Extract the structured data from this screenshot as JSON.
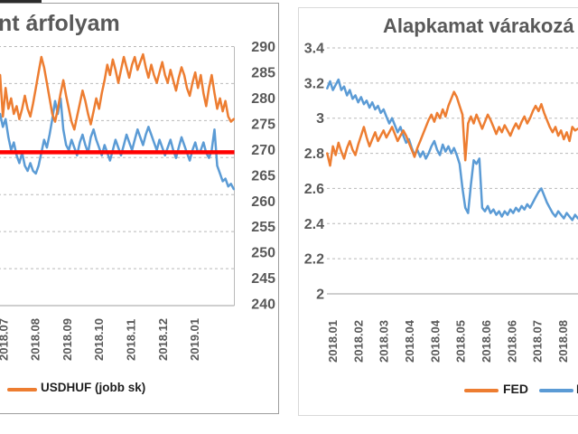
{
  "page": {
    "background": "#ffffff",
    "top_left_fragment_color": "#2b2b2b",
    "panel_border_left": "#9d9d9d",
    "panel_border_right": "#d9d9d9"
  },
  "chart_data": [
    {
      "type": "line",
      "panel": "left",
      "title": "nt árfolyam",
      "ylim_right": [
        240,
        290
      ],
      "y_tick_labels_right": [
        "290",
        "285",
        "280",
        "275",
        "270",
        "265",
        "260",
        "255",
        "250",
        "245",
        "240"
      ],
      "x_tick_labels": [
        "2018.07",
        "2018.08",
        "2018.09",
        "2018.10",
        "2018.11",
        "2018.12",
        "2019.01"
      ],
      "grid": "horizontal dashed, 8 lines (primary axis cut off at left)",
      "legend_position": "bottom",
      "reference_line": {
        "value": 269.6,
        "color": "#ff0000"
      },
      "legend": [
        {
          "label": "USDHUF (jobb sk)",
          "color": "#ed7d31"
        }
      ],
      "series": [
        {
          "name": "",
          "axis": "left (scale cut off, plotted vs right scale)",
          "color": "#5b9bd5",
          "x_unit": "months after 2018.07 tick",
          "x_start": -0.09,
          "x_step": 0.0862,
          "values": [
            277,
            274.5,
            276,
            272.5,
            270,
            271.5,
            269,
            267.5,
            269.5,
            267,
            266,
            267.5,
            266,
            265.5,
            267,
            269.5,
            272,
            270.5,
            273,
            276,
            279.5,
            277,
            280,
            274,
            271,
            270,
            272,
            270.5,
            269,
            271.5,
            273,
            271,
            269.5,
            272.5,
            274,
            272,
            270.5,
            269,
            271,
            269.5,
            268,
            270,
            272,
            270.5,
            269,
            271,
            273,
            271.5,
            270,
            272,
            274,
            272.5,
            271,
            273,
            274.5,
            273,
            271.5,
            270,
            272,
            270.5,
            269,
            270.5,
            272,
            270,
            268.5,
            270.5,
            272.5,
            271,
            269.5,
            268,
            270,
            271.5,
            269.5,
            270,
            271.5,
            269.5,
            268.5,
            270,
            274,
            267,
            265.5,
            264,
            264.5,
            263,
            263.5,
            262.5
          ]
        },
        {
          "name": "USDHUF (jobb sk)",
          "axis": "right",
          "color": "#ed7d31",
          "x_unit": "months after 2018.07 tick",
          "x_start": -0.09,
          "x_step": 0.0862,
          "values": [
            284.5,
            276.5,
            282,
            278,
            280,
            277,
            278.5,
            276,
            278,
            280.5,
            278,
            276.5,
            279,
            282,
            285,
            288,
            286,
            283,
            280,
            277,
            275.5,
            278,
            281,
            283.5,
            280.5,
            278,
            275.5,
            274,
            276.5,
            279,
            281.5,
            279.5,
            277,
            275,
            277.5,
            280,
            278,
            281,
            283.5,
            286.5,
            284.5,
            287.5,
            285.5,
            283,
            285.5,
            288,
            286,
            284,
            286.5,
            288,
            285.5,
            287,
            288.5,
            286,
            284,
            286.5,
            284.5,
            283,
            285,
            287,
            284.5,
            283,
            285.5,
            283.5,
            281.5,
            284,
            286,
            284.5,
            282,
            280.5,
            283,
            285,
            282,
            284.5,
            281,
            278.5,
            282,
            284.5,
            281,
            278,
            280,
            277.5,
            279.5,
            276.5,
            275.5,
            276
          ]
        }
      ]
    },
    {
      "type": "line",
      "panel": "right",
      "title": "Alapkamat várakozá",
      "ylim": [
        2,
        3.4
      ],
      "y_tick_labels": [
        "3.4",
        "3.2",
        "3",
        "2.8",
        "2.6",
        "2.4",
        "2.2",
        "2"
      ],
      "x_tick_labels": [
        "2018.01",
        "2018.02",
        "2018.03",
        "2018.04",
        "2018.04",
        "2018.05",
        "2018.06",
        "2018.06",
        "2018.07",
        "2018.08"
      ],
      "grid": "horizontal dashed",
      "legend_position": "bottom",
      "legend": [
        {
          "label": "FED",
          "color": "#ed7d31"
        },
        {
          "label": "E",
          "color": "#5b9bd5"
        }
      ],
      "series": [
        {
          "name": "E",
          "axis": "left",
          "color": "#5b9bd5",
          "x_unit": "x-tick index (2018.01 = 0)",
          "x_start": -0.2,
          "x_step": 0.1101,
          "values": [
            3.17,
            3.21,
            3.16,
            3.19,
            3.22,
            3.16,
            3.18,
            3.13,
            3.16,
            3.11,
            3.13,
            3.09,
            3.12,
            3.08,
            3.1,
            3.06,
            3.09,
            3.05,
            3.07,
            3.03,
            3.05,
            3.01,
            2.97,
            3.0,
            2.96,
            2.92,
            2.95,
            2.9,
            2.86,
            2.88,
            2.83,
            2.79,
            2.82,
            2.78,
            2.81,
            2.77,
            2.8,
            2.84,
            2.87,
            2.82,
            2.79,
            2.85,
            2.81,
            2.84,
            2.8,
            2.83,
            2.79,
            2.74,
            2.6,
            2.49,
            2.46,
            2.62,
            2.76,
            2.74,
            2.77,
            2.49,
            2.47,
            2.5,
            2.46,
            2.48,
            2.45,
            2.47,
            2.44,
            2.47,
            2.45,
            2.48,
            2.46,
            2.49,
            2.47,
            2.5,
            2.48,
            2.51,
            2.49,
            2.52,
            2.55,
            2.58,
            2.6,
            2.56,
            2.52,
            2.49,
            2.46,
            2.44,
            2.47,
            2.45,
            2.43,
            2.46,
            2.44,
            2.42,
            2.45,
            2.43
          ]
        },
        {
          "name": "FED",
          "axis": "left",
          "color": "#ed7d31",
          "x_unit": "x-tick index (2018.01 = 0)",
          "x_start": -0.2,
          "x_step": 0.1101,
          "values": [
            2.8,
            2.73,
            2.84,
            2.79,
            2.86,
            2.81,
            2.77,
            2.83,
            2.87,
            2.82,
            2.79,
            2.85,
            2.9,
            2.95,
            2.89,
            2.84,
            2.88,
            2.92,
            2.87,
            2.9,
            2.93,
            2.89,
            2.92,
            2.95,
            2.91,
            2.87,
            2.9,
            2.93,
            2.9,
            2.86,
            2.82,
            2.78,
            2.83,
            2.87,
            2.91,
            2.95,
            2.99,
            3.02,
            2.98,
            3.03,
            3.0,
            3.05,
            3.01,
            3.07,
            3.11,
            3.15,
            3.12,
            3.07,
            3.02,
            2.76,
            2.97,
            3.01,
            2.97,
            3.02,
            2.98,
            2.94,
            2.98,
            3.02,
            2.99,
            2.95,
            2.91,
            2.95,
            2.92,
            2.96,
            2.93,
            2.9,
            2.94,
            2.97,
            2.94,
            2.98,
            3.01,
            2.97,
            3.0,
            3.04,
            3.07,
            3.04,
            3.08,
            3.03,
            2.99,
            2.95,
            2.92,
            2.95,
            2.9,
            2.93,
            2.88,
            2.92,
            2.87,
            2.95,
            2.93,
            2.94
          ]
        }
      ]
    }
  ]
}
